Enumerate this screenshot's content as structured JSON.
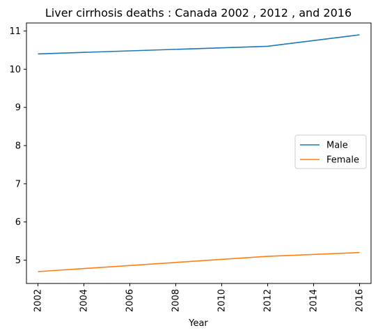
{
  "chart_data": {
    "type": "line",
    "title": "Liver cirrhosis deaths : Canada 2002 , 2012 , and 2016",
    "xlabel": "Year",
    "ylabel": "",
    "x": [
      2002,
      2012,
      2016
    ],
    "series": [
      {
        "name": "Male",
        "values": [
          10.4,
          10.6,
          10.9
        ],
        "color": "#1f77b4"
      },
      {
        "name": "Female",
        "values": [
          4.7,
          5.1,
          5.2
        ],
        "color": "#ff7f0e"
      }
    ],
    "xlim": [
      2001.5,
      2016.5
    ],
    "ylim": [
      4.39,
      11.21
    ],
    "xticks": [
      "2002",
      "2004",
      "2006",
      "2008",
      "2010",
      "2012",
      "2014",
      "2016"
    ],
    "yticks": [
      "5",
      "6",
      "7",
      "8",
      "9",
      "10",
      "11"
    ],
    "grid": false,
    "legend_position": "center-right"
  }
}
